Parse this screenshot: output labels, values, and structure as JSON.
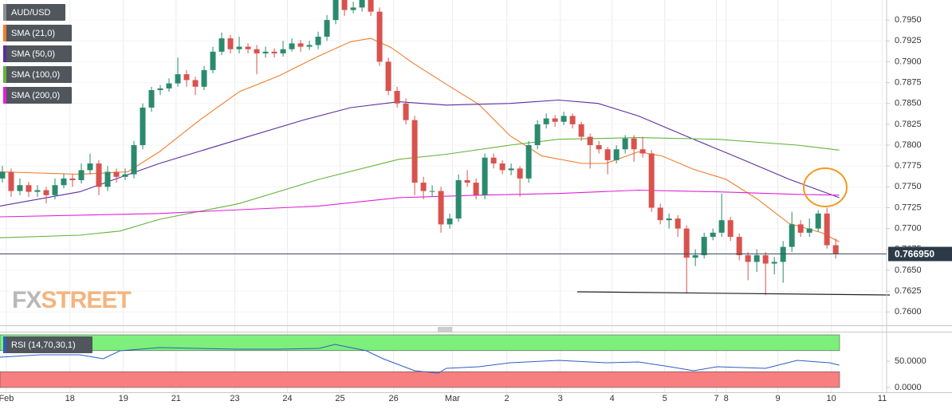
{
  "chart_data": {
    "type": "candlestick",
    "xlim": [
      -0.27,
      100.8
    ],
    "xticks": [
      {
        "value": 0.45,
        "label": "Feb"
      },
      {
        "value": 7.7,
        "label": "18"
      },
      {
        "value": 13.8,
        "label": "19"
      },
      {
        "value": 19.8,
        "label": "21"
      },
      {
        "value": 26.5,
        "label": "23"
      },
      {
        "value": 32.5,
        "label": "24"
      },
      {
        "value": 38.5,
        "label": "25"
      },
      {
        "value": 44.6,
        "label": "26"
      },
      {
        "value": 51.3,
        "label": "Mar"
      },
      {
        "value": 57.5,
        "label": "2"
      },
      {
        "value": 63.6,
        "label": "3"
      },
      {
        "value": 69.5,
        "label": "4"
      },
      {
        "value": 75.5,
        "label": "5"
      },
      {
        "value": 81.4,
        "label": "7"
      },
      {
        "value": 82.5,
        "label": "8"
      },
      {
        "value": 88.4,
        "label": "9"
      },
      {
        "value": 94.5,
        "label": "10"
      },
      {
        "value": 100.3,
        "label": "11"
      }
    ],
    "ylim": [
      0.7584,
      0.7974
    ],
    "yticks": [
      {
        "value": 0.76,
        "label": "0.7600"
      },
      {
        "value": 0.7625,
        "label": "0.7625"
      },
      {
        "value": 0.765,
        "label": "0.7650"
      },
      {
        "value": 0.7675,
        "label": "0.7675"
      },
      {
        "value": 0.77,
        "label": "0.7700"
      },
      {
        "value": 0.7725,
        "label": "0.7725"
      },
      {
        "value": 0.775,
        "label": "0.7750"
      },
      {
        "value": 0.7775,
        "label": "0.7775"
      },
      {
        "value": 0.78,
        "label": "0.7800"
      },
      {
        "value": 0.7825,
        "label": "0.7825"
      },
      {
        "value": 0.785,
        "label": "0.7850"
      },
      {
        "value": 0.7875,
        "label": "0.7875"
      },
      {
        "value": 0.79,
        "label": "0.7900"
      },
      {
        "value": 0.7925,
        "label": "0.7925"
      },
      {
        "value": 0.795,
        "label": "0.7950"
      }
    ],
    "grid": true,
    "watermark": [
      "FX",
      "STREET"
    ],
    "last_price": {
      "value": 0.76695,
      "label": "0.766950"
    },
    "candles": {
      "name": "AUD/USD",
      "legend_color": "#8a8f95",
      "up_color": "#2b8a6e",
      "down_color": "#d8524e",
      "x": [
        0,
        1,
        2,
        3,
        4,
        5,
        6,
        7,
        8,
        9,
        10,
        11,
        12,
        13,
        14,
        15,
        16,
        17,
        18,
        19,
        20,
        21,
        22,
        23,
        24,
        25,
        26,
        27,
        28,
        29,
        30,
        31,
        32,
        33,
        34,
        35,
        36,
        37,
        38,
        39,
        40,
        41,
        42,
        43,
        44,
        45,
        46,
        47,
        48,
        49,
        50,
        51,
        52,
        53,
        54,
        55,
        56,
        57,
        58,
        59,
        60,
        61,
        62,
        63,
        64,
        65,
        66,
        67,
        68,
        69,
        70,
        71,
        72,
        73,
        74,
        75,
        76,
        77,
        78,
        79,
        80,
        81,
        82,
        83,
        84,
        85,
        86,
        87,
        88,
        89,
        90,
        91,
        92,
        93,
        94,
        95
      ],
      "data": [
        [
          0.776,
          0.7775,
          0.7755,
          0.7768
        ],
        [
          0.7768,
          0.7772,
          0.7738,
          0.7745
        ],
        [
          0.7745,
          0.776,
          0.774,
          0.7752
        ],
        [
          0.7752,
          0.7756,
          0.7738,
          0.7744
        ],
        [
          0.7744,
          0.7752,
          0.7738,
          0.7746
        ],
        [
          0.7746,
          0.775,
          0.773,
          0.774
        ],
        [
          0.774,
          0.776,
          0.7735,
          0.7752
        ],
        [
          0.7752,
          0.7766,
          0.7748,
          0.776
        ],
        [
          0.776,
          0.7765,
          0.775,
          0.7758
        ],
        [
          0.7758,
          0.7778,
          0.7754,
          0.777
        ],
        [
          0.777,
          0.779,
          0.7765,
          0.7778
        ],
        [
          0.7778,
          0.7782,
          0.774,
          0.775
        ],
        [
          0.775,
          0.7775,
          0.7745,
          0.7768
        ],
        [
          0.7768,
          0.7772,
          0.7755,
          0.7762
        ],
        [
          0.7762,
          0.7772,
          0.7758,
          0.7765
        ],
        [
          0.7765,
          0.7805,
          0.776,
          0.78
        ],
        [
          0.78,
          0.785,
          0.7795,
          0.7845
        ],
        [
          0.7845,
          0.787,
          0.784,
          0.7866
        ],
        [
          0.7866,
          0.7872,
          0.786,
          0.7868
        ],
        [
          0.7868,
          0.788,
          0.7864,
          0.7874
        ],
        [
          0.7874,
          0.7905,
          0.787,
          0.7885
        ],
        [
          0.7885,
          0.789,
          0.787,
          0.7878
        ],
        [
          0.7878,
          0.7882,
          0.786,
          0.787
        ],
        [
          0.787,
          0.7895,
          0.7866,
          0.789
        ],
        [
          0.789,
          0.7918,
          0.7886,
          0.7912
        ],
        [
          0.7912,
          0.7935,
          0.7908,
          0.7928
        ],
        [
          0.7928,
          0.7932,
          0.791,
          0.7915
        ],
        [
          0.7915,
          0.793,
          0.791,
          0.7918
        ],
        [
          0.7918,
          0.7922,
          0.791,
          0.7915
        ],
        [
          0.7915,
          0.792,
          0.7885,
          0.791
        ],
        [
          0.791,
          0.7918,
          0.7905,
          0.7912
        ],
        [
          0.7912,
          0.7916,
          0.7905,
          0.791
        ],
        [
          0.791,
          0.7925,
          0.7906,
          0.7915
        ],
        [
          0.7915,
          0.7928,
          0.7912,
          0.7922
        ],
        [
          0.7922,
          0.7926,
          0.7912,
          0.7918
        ],
        [
          0.7918,
          0.7925,
          0.7914,
          0.792
        ],
        [
          0.792,
          0.7936,
          0.7915,
          0.793
        ],
        [
          0.793,
          0.7956,
          0.7925,
          0.795
        ],
        [
          0.795,
          0.7985,
          0.7945,
          0.7975
        ],
        [
          0.7975,
          0.798,
          0.7955,
          0.7962
        ],
        [
          0.7962,
          0.7972,
          0.7958,
          0.7965
        ],
        [
          0.7965,
          0.7985,
          0.796,
          0.7975
        ],
        [
          0.7975,
          0.798,
          0.7955,
          0.796
        ],
        [
          0.796,
          0.7965,
          0.7895,
          0.79
        ],
        [
          0.79,
          0.7905,
          0.786,
          0.7865
        ],
        [
          0.7865,
          0.787,
          0.7845,
          0.785
        ],
        [
          0.785,
          0.7856,
          0.7825,
          0.783
        ],
        [
          0.783,
          0.7835,
          0.774,
          0.7755
        ],
        [
          0.7755,
          0.7762,
          0.7735,
          0.7745
        ],
        [
          0.7745,
          0.7752,
          0.7738,
          0.7745
        ],
        [
          0.7745,
          0.775,
          0.7695,
          0.7705
        ],
        [
          0.7705,
          0.7718,
          0.77,
          0.7712
        ],
        [
          0.7712,
          0.7765,
          0.7708,
          0.7758
        ],
        [
          0.7758,
          0.777,
          0.775,
          0.7755
        ],
        [
          0.7755,
          0.776,
          0.7735,
          0.774
        ],
        [
          0.774,
          0.779,
          0.7735,
          0.7785
        ],
        [
          0.7785,
          0.779,
          0.7772,
          0.7778
        ],
        [
          0.7778,
          0.7782,
          0.7765,
          0.777
        ],
        [
          0.777,
          0.7778,
          0.7764,
          0.7772
        ],
        [
          0.7772,
          0.7775,
          0.7738,
          0.776
        ],
        [
          0.776,
          0.7805,
          0.7755,
          0.78
        ],
        [
          0.78,
          0.783,
          0.7795,
          0.7825
        ],
        [
          0.7825,
          0.7838,
          0.782,
          0.7832
        ],
        [
          0.7832,
          0.7836,
          0.7822,
          0.7828
        ],
        [
          0.7828,
          0.784,
          0.7824,
          0.7835
        ],
        [
          0.7835,
          0.7838,
          0.782,
          0.7825
        ],
        [
          0.7825,
          0.7828,
          0.7805,
          0.781
        ],
        [
          0.781,
          0.7814,
          0.7772,
          0.78
        ],
        [
          0.78,
          0.7805,
          0.779,
          0.7795
        ],
        [
          0.7795,
          0.7798,
          0.7765,
          0.7782
        ],
        [
          0.7782,
          0.78,
          0.7778,
          0.7795
        ],
        [
          0.7795,
          0.7812,
          0.779,
          0.7808
        ],
        [
          0.7808,
          0.7812,
          0.778,
          0.7795
        ],
        [
          0.7795,
          0.781,
          0.7785,
          0.779
        ],
        [
          0.779,
          0.7794,
          0.772,
          0.7725
        ],
        [
          0.7725,
          0.773,
          0.7705,
          0.771
        ],
        [
          0.771,
          0.7718,
          0.77,
          0.7712
        ],
        [
          0.7712,
          0.7716,
          0.769,
          0.77
        ],
        [
          0.77,
          0.7704,
          0.7622,
          0.7665
        ],
        [
          0.7665,
          0.7675,
          0.7655,
          0.7668
        ],
        [
          0.7668,
          0.7695,
          0.7664,
          0.769
        ],
        [
          0.769,
          0.77,
          0.7686,
          0.7695
        ],
        [
          0.7695,
          0.7742,
          0.769,
          0.771
        ],
        [
          0.771,
          0.7714,
          0.7685,
          0.769
        ],
        [
          0.769,
          0.7694,
          0.7662,
          0.7668
        ],
        [
          0.7668,
          0.7672,
          0.7638,
          0.766
        ],
        [
          0.766,
          0.7675,
          0.7648,
          0.7668
        ],
        [
          0.7668,
          0.7672,
          0.762,
          0.7658
        ],
        [
          0.7658,
          0.7666,
          0.7645,
          0.766
        ],
        [
          0.766,
          0.7685,
          0.7635,
          0.7678
        ],
        [
          0.7678,
          0.772,
          0.7672,
          0.7705
        ],
        [
          0.7705,
          0.771,
          0.769,
          0.7695
        ],
        [
          0.7695,
          0.7712,
          0.769,
          0.77
        ],
        [
          0.77,
          0.7722,
          0.7696,
          0.7718
        ],
        [
          0.7718,
          0.7725,
          0.7676,
          0.768
        ],
        [
          0.768,
          0.7688,
          0.7664,
          0.76695
        ]
      ]
    },
    "series": [
      {
        "name": "SMA (21,0)",
        "color": "#f07d2c",
        "x": [
          -0.27,
          8.8,
          14.3,
          17.9,
          22.5,
          27,
          31.5,
          36.1,
          39.7,
          42,
          44.3,
          47,
          50.6,
          54.3,
          57.9,
          61.5,
          66.1,
          68.8,
          72.5,
          75.2,
          78.8,
          82.5,
          86.1,
          89.7,
          93.4,
          95.4
        ],
        "values": [
          0.7768,
          0.7765,
          0.7768,
          0.7792,
          0.783,
          0.7864,
          0.7883,
          0.7907,
          0.7924,
          0.7928,
          0.7917,
          0.7897,
          0.7873,
          0.7849,
          0.7811,
          0.7787,
          0.7778,
          0.7778,
          0.7792,
          0.7787,
          0.7771,
          0.7759,
          0.7735,
          0.7706,
          0.7695,
          0.7684
        ]
      },
      {
        "name": "SMA (50,0)",
        "color": "#5b2d9e",
        "x": [
          -0.27,
          8.8,
          17.9,
          27,
          34.3,
          39.7,
          45.2,
          50.6,
          57.9,
          63.4,
          67.9,
          72.5,
          77.9,
          84.3,
          89.7,
          95.4
        ],
        "values": [
          0.7727,
          0.7744,
          0.7778,
          0.7807,
          0.783,
          0.7845,
          0.7852,
          0.7848,
          0.785,
          0.7854,
          0.785,
          0.7835,
          0.7811,
          0.7783,
          0.7759,
          0.7737
        ]
      },
      {
        "name": "SMA (100,0)",
        "color": "#66b33a",
        "x": [
          -0.27,
          8.8,
          13.4,
          17.9,
          27,
          36.1,
          45.2,
          50.6,
          57.9,
          63.4,
          72.5,
          81.5,
          90.6,
          95.4
        ],
        "values": [
          0.7689,
          0.7692,
          0.7697,
          0.7711,
          0.773,
          0.7759,
          0.7783,
          0.7789,
          0.78,
          0.7807,
          0.7809,
          0.7807,
          0.78,
          0.7794
        ]
      },
      {
        "name": "SMA (200,0)",
        "color": "#e020d8",
        "x": [
          -0.27,
          17.9,
          36.1,
          45.2,
          54.3,
          63.4,
          72.5,
          81.5,
          90.6,
          95.4
        ],
        "values": [
          0.7714,
          0.7718,
          0.7727,
          0.7737,
          0.774,
          0.7742,
          0.7746,
          0.7744,
          0.7741,
          0.774
        ]
      }
    ],
    "rsi": {
      "name": "RSI (14,70,30,1)",
      "color": "#2f5cc4",
      "ylim": [
        0,
        100
      ],
      "yticks": [
        {
          "value": 50,
          "label": "50.0000"
        },
        {
          "value": 0,
          "label": "0.0000"
        }
      ],
      "overbought": [
        70,
        100
      ],
      "oversold": [
        0,
        30
      ],
      "overbought_color": "#7cf07a",
      "oversold_color": "#f77f7f",
      "x": [
        -0.27,
        4.3,
        8.8,
        11.5,
        13.4,
        17.9,
        22.5,
        27,
        31.5,
        36.1,
        37.9,
        41.5,
        43.4,
        47,
        49.7,
        50.6,
        54.3,
        57.9,
        63.4,
        68.8,
        72.5,
        76.1,
        78.8,
        81.5,
        87,
        90.6,
        94.3,
        95.4
      ],
      "values": [
        57.6,
        62.1,
        62.1,
        54.5,
        69.7,
        75.8,
        74.2,
        72.7,
        72.7,
        74.2,
        81.8,
        69.7,
        54.5,
        31.8,
        27.3,
        36.4,
        39.4,
        47.0,
        51.5,
        47.0,
        48.5,
        39.4,
        31.8,
        39.4,
        36.4,
        51.5,
        47.0,
        42.4
      ]
    }
  }
}
